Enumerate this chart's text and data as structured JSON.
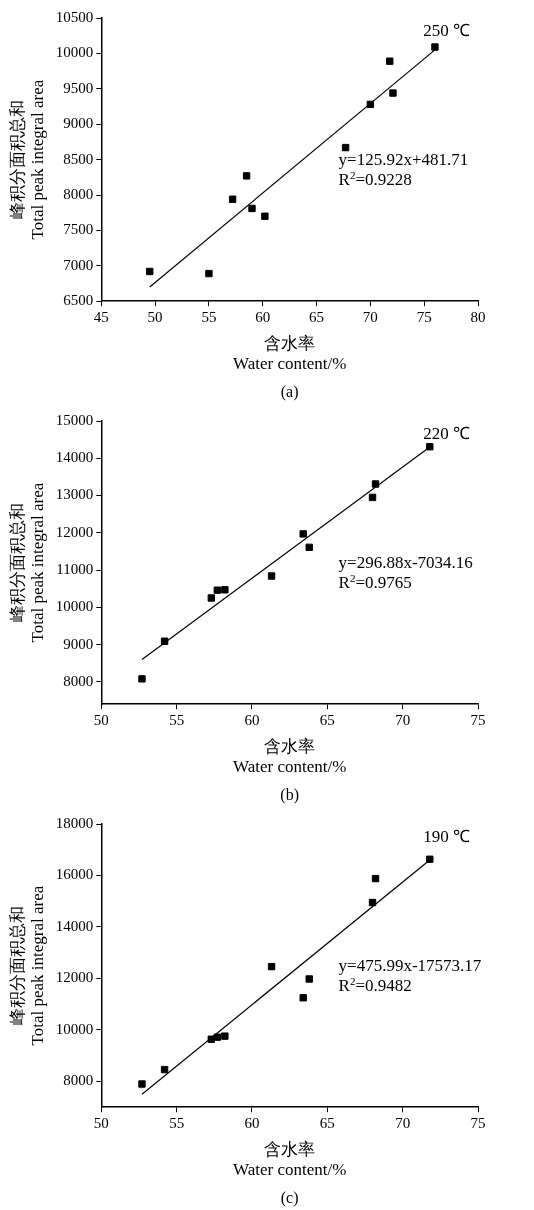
{
  "chart_data": [
    {
      "type": "scatter",
      "xlabel": "含水率\nWater content/%",
      "ylabel": "峰积分面积总和\nTotal peak integral area",
      "xlim": [
        45,
        80
      ],
      "xticks": [
        45,
        50,
        55,
        60,
        65,
        70,
        75,
        80
      ],
      "ylim": [
        6500,
        10500
      ],
      "yticks": [
        6500,
        7000,
        7500,
        8000,
        8500,
        9000,
        9500,
        10000,
        10500
      ],
      "grid": false,
      "legend": false,
      "series": [
        {
          "type": "scatter",
          "marker": "square",
          "color": "#000000",
          "x": [
            49.5,
            55,
            57.2,
            58.5,
            59,
            60.2,
            67.7,
            70,
            71.8,
            72.1,
            76
          ],
          "values": [
            6920,
            6890,
            7940,
            8270,
            7810,
            7700,
            8670,
            9280,
            9890,
            9440,
            10090
          ]
        },
        {
          "type": "line",
          "marker": "none",
          "color": "#000000",
          "x": [
            49.5,
            76
          ],
          "values": [
            6700,
            10050
          ]
        }
      ],
      "annotations": [
        "250 ℃",
        "y=125.92x+481.71",
        "R$^{2}$=0.9228",
        "(a)"
      ]
    },
    {
      "type": "scatter",
      "xlabel": "含水率\nWater content/%",
      "ylabel": "峰积分面积总和\nTotal peak integral area",
      "xlim": [
        50,
        75
      ],
      "xticks": [
        50,
        55,
        60,
        65,
        70,
        75
      ],
      "ylim": [
        7400,
        15000
      ],
      "yticks": [
        8000,
        9000,
        10000,
        11000,
        12000,
        13000,
        14000,
        15000
      ],
      "grid": false,
      "legend": false,
      "series": [
        {
          "type": "scatter",
          "marker": "square",
          "color": "#000000",
          "x": [
            52.7,
            54.2,
            57.3,
            57.7,
            58.2,
            61.3,
            63.4,
            63.8,
            68,
            68.2,
            71.8
          ],
          "values": [
            8080,
            9090,
            10250,
            10460,
            10470,
            10840,
            11970,
            11610,
            12950,
            13310,
            14310
          ]
        },
        {
          "type": "line",
          "marker": "none",
          "color": "#000000",
          "x": [
            52.7,
            71.8
          ],
          "values": [
            8600,
            14300
          ]
        }
      ],
      "annotations": [
        "220 ℃",
        "y=296.88x-7034.16",
        "R$^{2}$=0.9765",
        "(b)"
      ]
    },
    {
      "type": "scatter",
      "xlabel": "含水率\nWater content/%",
      "ylabel": "峰积分面积总和\nTotal peak integral area",
      "xlim": [
        50,
        75
      ],
      "xticks": [
        50,
        55,
        60,
        65,
        70,
        75
      ],
      "ylim": [
        7000,
        18000
      ],
      "yticks": [
        8000,
        10000,
        12000,
        14000,
        16000,
        18000
      ],
      "grid": false,
      "legend": false,
      "series": [
        {
          "type": "scatter",
          "marker": "square",
          "color": "#000000",
          "x": [
            52.7,
            54.2,
            57.3,
            57.7,
            58.2,
            61.3,
            63.4,
            63.8,
            68,
            68.2,
            71.8
          ],
          "values": [
            7900,
            8460,
            9640,
            9720,
            9760,
            12460,
            11250,
            11980,
            14950,
            15880,
            16630
          ]
        },
        {
          "type": "line",
          "marker": "none",
          "color": "#000000",
          "x": [
            52.7,
            71.8
          ],
          "values": [
            7500,
            16600
          ]
        }
      ],
      "annotations": [
        "190 ℃",
        "y=475.99x-17573.17",
        "R$^{2}$=0.9482",
        "(c)"
      ]
    }
  ]
}
